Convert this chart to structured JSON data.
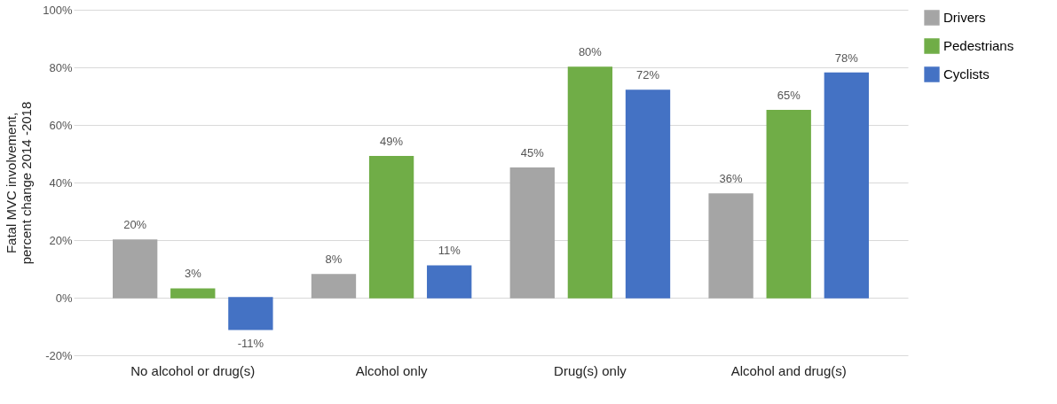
{
  "chart_data": {
    "type": "bar",
    "ylabel": "Fatal MVC involvement, percent change 2014 -2018",
    "categories": [
      "No alcohol or drug(s)",
      "Alcohol only",
      "Drug(s) only",
      "Alcohol and drug(s)"
    ],
    "series": [
      {
        "name": "Drivers",
        "color": "#a5a5a5",
        "values": [
          20,
          8,
          45,
          36
        ],
        "value_labels": [
          "20%",
          "8%",
          "45%",
          "36%"
        ]
      },
      {
        "name": "Pedestrians",
        "color": "#70ad47",
        "values": [
          3,
          49,
          80,
          65
        ],
        "value_labels": [
          "3%",
          "49%",
          "80%",
          "65%"
        ]
      },
      {
        "name": "Cyclists",
        "color": "#4472c4",
        "values": [
          -11,
          11,
          72,
          78
        ],
        "value_labels": [
          "-11%",
          "11%",
          "72%",
          "78%"
        ]
      }
    ],
    "ylim": [
      -20,
      100
    ],
    "yticks": [
      {
        "value": -20,
        "label": "-20%"
      },
      {
        "value": 0,
        "label": "0%"
      },
      {
        "value": 20,
        "label": "20%"
      },
      {
        "value": 40,
        "label": "40%"
      },
      {
        "value": 60,
        "label": "60%"
      },
      {
        "value": 80,
        "label": "80%"
      },
      {
        "value": 100,
        "label": "100%"
      }
    ],
    "grid": "y",
    "legend": "right"
  }
}
